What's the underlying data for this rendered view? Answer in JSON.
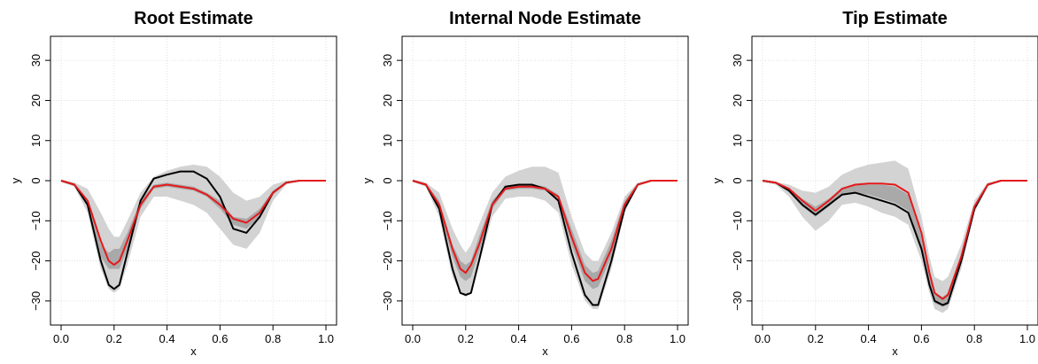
{
  "figure": {
    "panels": [
      {
        "title": "Root Estimate",
        "xlabel": "x",
        "ylabel": "y"
      },
      {
        "title": "Internal Node Estimate",
        "xlabel": "x",
        "ylabel": "y"
      },
      {
        "title": "Tip Estimate",
        "xlabel": "x",
        "ylabel": "y"
      }
    ]
  },
  "chart_data": [
    {
      "type": "line",
      "title": "Root Estimate",
      "xlabel": "x",
      "ylabel": "y",
      "xlim": [
        0,
        1
      ],
      "ylim": [
        -36,
        36
      ],
      "xticks": [
        "0.0",
        "0.2",
        "0.4",
        "0.6",
        "0.8",
        "1.0"
      ],
      "yticks": [
        "−30",
        "−20",
        "−10",
        "0",
        "10",
        "20",
        "30"
      ],
      "grid": true,
      "colors": {
        "black_line": "#000000",
        "red_line": "#e41a1c",
        "outer_band": "#d3d3d3",
        "inner_band": "#a9a9a9"
      },
      "x": [
        0.0,
        0.05,
        0.1,
        0.15,
        0.18,
        0.2,
        0.22,
        0.25,
        0.3,
        0.35,
        0.4,
        0.45,
        0.5,
        0.55,
        0.6,
        0.65,
        0.7,
        0.75,
        0.8,
        0.85,
        0.9,
        1.0
      ],
      "series": [
        {
          "values": [
            0,
            -1,
            -6,
            -20,
            -26,
            -27,
            -26,
            -18,
            -5,
            0.5,
            1.5,
            2.3,
            2.3,
            0.5,
            -4,
            -12,
            -13,
            -9,
            -3,
            -0.5,
            0,
            0
          ]
        },
        {
          "values": [
            0,
            -1,
            -5,
            -15,
            -20,
            -21,
            -20,
            -15,
            -6,
            -1.5,
            -1,
            -1.5,
            -2,
            -3.5,
            -6,
            -9.5,
            -10.5,
            -8,
            -3,
            -0.5,
            0,
            0
          ]
        }
      ],
      "bands": [
        {
          "upper": [
            0.3,
            -0.5,
            -2,
            -8,
            -12,
            -14,
            -14,
            -10,
            -3,
            1,
            2.5,
            3.5,
            4,
            3.5,
            1,
            -3,
            -5,
            -4,
            -1,
            0,
            0,
            0
          ],
          "lower": [
            -0.3,
            -1.5,
            -8,
            -22,
            -27,
            -28,
            -27,
            -21,
            -9,
            -4,
            -4,
            -5,
            -6,
            -8,
            -12,
            -16,
            -17,
            -13,
            -5,
            -1,
            0,
            0
          ]
        },
        {
          "upper": [
            0,
            -0.7,
            -5,
            -16,
            -18,
            -17,
            -17,
            -13,
            -5,
            -1,
            -0.5,
            -1,
            -1.5,
            -3,
            -5,
            -9,
            -9.5,
            -7,
            -2.5,
            -0.3,
            0,
            0
          ],
          "lower": [
            0,
            -1.2,
            -6,
            -19,
            -22,
            -22,
            -22,
            -17,
            -7,
            -2,
            -1.5,
            -2,
            -2.5,
            -4,
            -7,
            -11,
            -12,
            -9,
            -3.5,
            -0.7,
            0,
            0
          ]
        }
      ]
    },
    {
      "type": "line",
      "title": "Internal Node Estimate",
      "xlabel": "x",
      "ylabel": "y",
      "xlim": [
        0,
        1
      ],
      "ylim": [
        -36,
        36
      ],
      "xticks": [
        "0.0",
        "0.2",
        "0.4",
        "0.6",
        "0.8",
        "1.0"
      ],
      "yticks": [
        "−30",
        "−20",
        "−10",
        "0",
        "10",
        "20",
        "30"
      ],
      "grid": true,
      "colors": {
        "black_line": "#000000",
        "red_line": "#e41a1c",
        "outer_band": "#d3d3d3",
        "inner_band": "#a9a9a9"
      },
      "x": [
        0.0,
        0.05,
        0.1,
        0.15,
        0.18,
        0.2,
        0.22,
        0.25,
        0.3,
        0.35,
        0.4,
        0.45,
        0.5,
        0.55,
        0.6,
        0.65,
        0.68,
        0.7,
        0.75,
        0.8,
        0.85,
        0.9,
        1.0
      ],
      "series": [
        {
          "values": [
            0,
            -1,
            -7,
            -22,
            -28,
            -28.5,
            -28,
            -20,
            -6,
            -1.5,
            -1,
            -1,
            -2,
            -5,
            -18,
            -28.5,
            -31,
            -31,
            -20,
            -7,
            -1,
            0,
            0
          ]
        },
        {
          "values": [
            0,
            -1,
            -6,
            -17,
            -22,
            -23,
            -21,
            -16,
            -6,
            -2,
            -1.5,
            -1.5,
            -2,
            -4,
            -14,
            -23,
            -25,
            -24.5,
            -17,
            -6,
            -1,
            0,
            0
          ]
        }
      ],
      "bands": [
        {
          "upper": [
            0.3,
            -0.5,
            -3,
            -12,
            -16,
            -18,
            -16,
            -11,
            -3,
            1,
            2.5,
            3.5,
            3.5,
            2,
            -9,
            -18,
            -20,
            -20,
            -13,
            -4,
            -0.5,
            0,
            0
          ],
          "lower": [
            -0.3,
            -1.5,
            -9,
            -24,
            -28,
            -29,
            -28,
            -21,
            -9,
            -4.5,
            -4,
            -4,
            -5,
            -8,
            -21,
            -30,
            -32,
            -32,
            -22,
            -8,
            -1,
            0,
            0
          ]
        },
        {
          "upper": [
            0,
            -0.7,
            -5,
            -16,
            -20,
            -21,
            -20,
            -14,
            -5,
            -1.5,
            -1,
            -1,
            -1.5,
            -3.5,
            -12,
            -21,
            -23,
            -22.5,
            -15,
            -5,
            -0.7,
            0,
            0
          ],
          "lower": [
            0,
            -1.2,
            -7,
            -19,
            -24,
            -25,
            -24,
            -18,
            -7,
            -2.5,
            -2,
            -2,
            -2.5,
            -5,
            -16,
            -25,
            -27,
            -26.5,
            -19,
            -7,
            -1.2,
            0,
            0
          ]
        }
      ]
    },
    {
      "type": "line",
      "title": "Tip Estimate",
      "xlabel": "x",
      "ylabel": "y",
      "xlim": [
        0,
        1
      ],
      "ylim": [
        -36,
        36
      ],
      "xticks": [
        "0.0",
        "0.2",
        "0.4",
        "0.6",
        "0.8",
        "1.0"
      ],
      "yticks": [
        "−30",
        "−20",
        "−10",
        "0",
        "10",
        "20",
        "30"
      ],
      "grid": true,
      "colors": {
        "black_line": "#000000",
        "red_line": "#e41a1c",
        "outer_band": "#d3d3d3",
        "inner_band": "#a9a9a9"
      },
      "x": [
        0.0,
        0.05,
        0.1,
        0.15,
        0.2,
        0.25,
        0.3,
        0.35,
        0.4,
        0.45,
        0.5,
        0.55,
        0.6,
        0.63,
        0.65,
        0.68,
        0.7,
        0.75,
        0.8,
        0.85,
        0.9,
        1.0
      ],
      "series": [
        {
          "values": [
            0,
            -0.5,
            -2.5,
            -6,
            -8.5,
            -6,
            -3.5,
            -3,
            -4,
            -5,
            -6,
            -8,
            -17,
            -26,
            -30,
            -31,
            -30.5,
            -20,
            -7,
            -1,
            0,
            0
          ]
        },
        {
          "values": [
            0,
            -0.5,
            -2,
            -5,
            -7.5,
            -5,
            -2,
            -1,
            -0.7,
            -0.7,
            -1,
            -3,
            -13,
            -23,
            -28,
            -29.5,
            -28.5,
            -19,
            -6.5,
            -1,
            0,
            0
          ]
        }
      ],
      "bands": [
        {
          "upper": [
            0.3,
            -0.3,
            -1,
            -2.5,
            -3,
            -1.5,
            1.5,
            3,
            4,
            4.5,
            5,
            3,
            -9,
            -19,
            -24,
            -25,
            -24,
            -16,
            -5,
            -0.5,
            0,
            0
          ],
          "lower": [
            -0.3,
            -1,
            -4,
            -9,
            -12.5,
            -10,
            -6,
            -5.5,
            -6.5,
            -8,
            -9,
            -11,
            -20,
            -28,
            -32,
            -33,
            -32,
            -22,
            -8,
            -1.5,
            0,
            0
          ]
        },
        {
          "upper": [
            0,
            -0.3,
            -1.8,
            -4.5,
            -6.5,
            -4.5,
            -2,
            -1,
            -1,
            -1,
            -1.5,
            -3.5,
            -14,
            -24,
            -28,
            -29,
            -28,
            -18.5,
            -6,
            -0.7,
            0,
            0
          ],
          "lower": [
            0,
            -0.7,
            -2.8,
            -6.5,
            -9,
            -6.5,
            -3.5,
            -3,
            -3.5,
            -4.5,
            -5.5,
            -7.5,
            -17,
            -26.5,
            -30.5,
            -31.5,
            -31,
            -20.5,
            -7.2,
            -1.2,
            0,
            0
          ]
        }
      ]
    }
  ]
}
